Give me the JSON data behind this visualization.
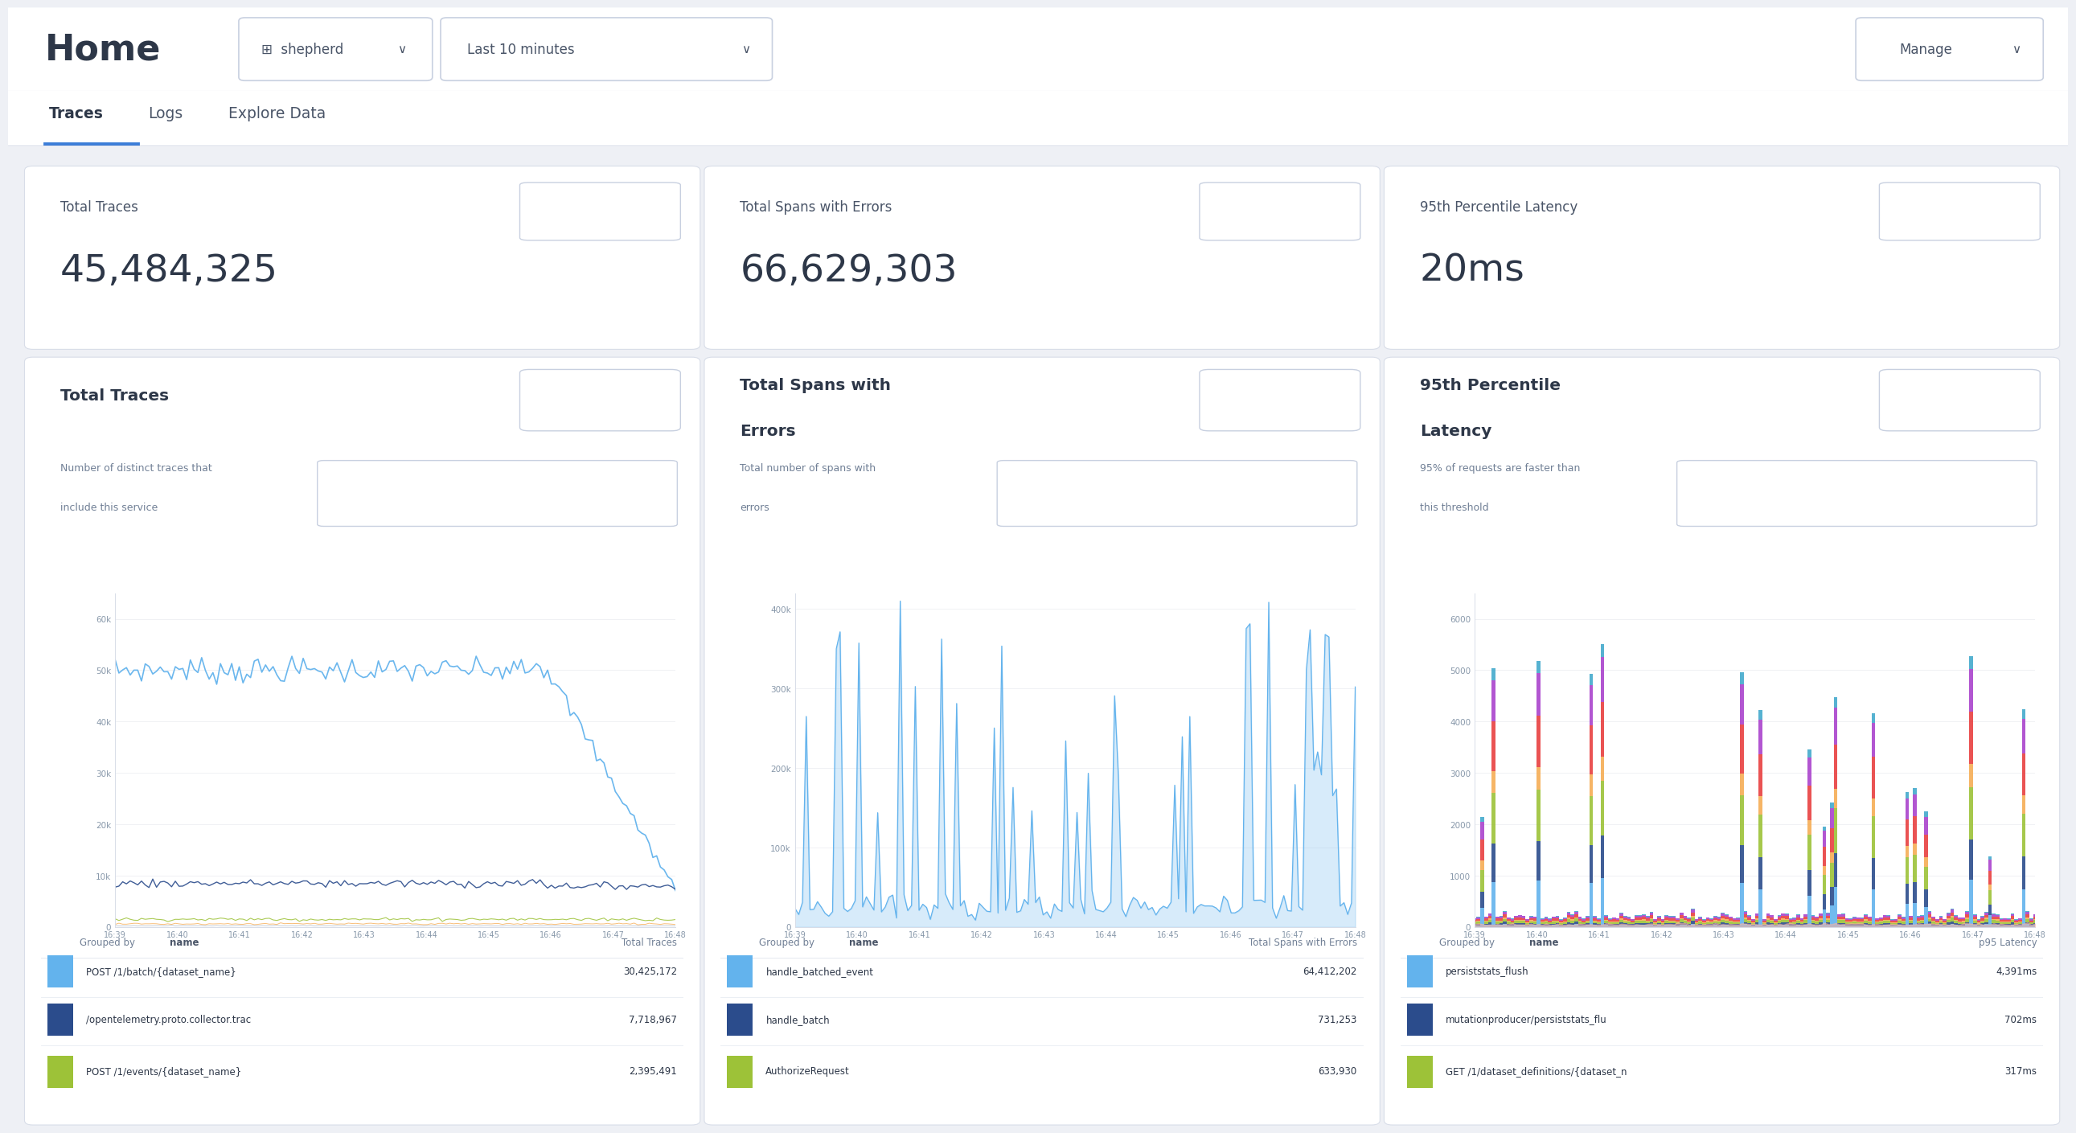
{
  "bg_color": "#eef0f5",
  "panel_bg": "#ffffff",
  "header_bg": "#ffffff",
  "title": "Home",
  "dropdown1_text": "⊞ shepherd  ∨",
  "dropdown2_text": "Last 10 minutes           ∨",
  "manage_text": "Manage  ∨",
  "tabs": [
    "Traces",
    "Logs",
    "Explore Data"
  ],
  "active_tab_idx": 0,
  "tab_underline_color": "#3b7dd8",
  "panels": [
    {
      "num_title": "Total Traces",
      "big_number": "45,484,325",
      "chart_title_line1": "Total Traces",
      "chart_title_line2": "",
      "chart_subtitle_line1": "Number of distinct traces that",
      "chart_subtitle_line2": "include this service",
      "group_by": "name",
      "table_header_left": "Grouped by",
      "table_header_bold": "name",
      "table_header_right": "Total Traces",
      "table_rows": [
        {
          "color": "#63b3ed",
          "label": "POST /1/batch/{dataset_name}",
          "value": "30,425,172"
        },
        {
          "color": "#2b4c8c",
          "label": "/opentelemetry.proto.collector.trac",
          "value": "7,718,967"
        },
        {
          "color": "#9dc238",
          "label": "POST /1/events/{dataset_name}",
          "value": "2,395,491"
        }
      ],
      "chart_type": 0
    },
    {
      "num_title": "Total Spans with Errors",
      "big_number": "66,629,303",
      "chart_title_line1": "Total Spans with",
      "chart_title_line2": "Errors",
      "chart_subtitle_line1": "Total number of spans with",
      "chart_subtitle_line2": "errors",
      "group_by": "name",
      "table_header_left": "Grouped by",
      "table_header_bold": "name",
      "table_header_right": "Total Spans with\nErrors",
      "table_rows": [
        {
          "color": "#63b3ed",
          "label": "handle_batched_event",
          "value": "64,412,202"
        },
        {
          "color": "#2b4c8c",
          "label": "handle_batch",
          "value": "731,253"
        },
        {
          "color": "#9dc238",
          "label": "AuthorizeRequest",
          "value": "633,930"
        }
      ],
      "chart_type": 1
    },
    {
      "num_title": "95th Percentile Latency",
      "big_number": "20ms",
      "chart_title_line1": "95th Percentile",
      "chart_title_line2": "Latency",
      "chart_subtitle_line1": "95% of requests are faster than",
      "chart_subtitle_line2": "this threshold",
      "group_by": "name",
      "table_header_left": "Grouped by",
      "table_header_bold": "name",
      "table_header_right": "p95 Latency",
      "table_rows": [
        {
          "color": "#63b3ed",
          "label": "persiststats_flush",
          "value": "4,391ms"
        },
        {
          "color": "#2b4c8c",
          "label": "mutationproducer/persiststats_flu",
          "value": "702ms"
        },
        {
          "color": "#9dc238",
          "label": "GET /1/dataset_definitions/{dataset_n",
          "value": "317ms"
        }
      ],
      "chart_type": 2
    }
  ],
  "expand_btn_color": "#ffffff",
  "expand_btn_ec": "#c8d0e0",
  "expand_btn_text_color": "#2d3748",
  "text_dark": "#2d3748",
  "text_mid": "#4a5568",
  "text_light": "#718096",
  "panel_ec": "#d8dde8",
  "dropdown_ec": "#c8d0e0",
  "tick_label_color": "#8898aa",
  "grid_color": "#eeeff2",
  "x_labels": [
    "16:39",
    "16:40",
    "16:41",
    "16:42",
    "16:43",
    "16:44",
    "16:45",
    "16:46",
    "16:47",
    "16:48"
  ]
}
